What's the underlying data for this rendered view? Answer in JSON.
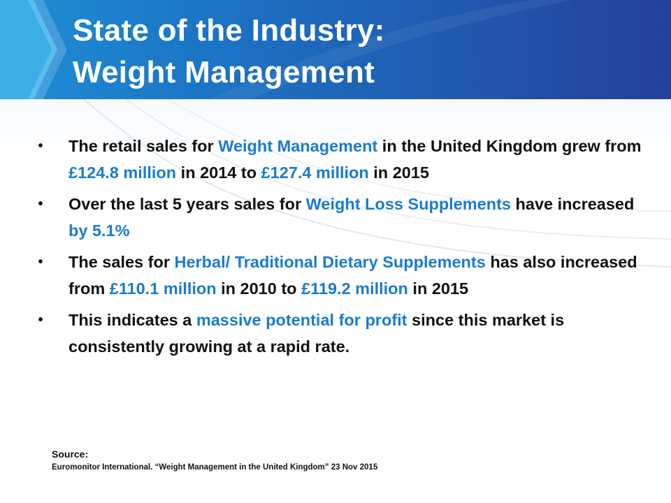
{
  "title": {
    "line1": "State of the Industry:",
    "line2": "Weight Management"
  },
  "bullets": [
    {
      "parts": [
        {
          "t": "The retail sales for "
        },
        {
          "t": "Weight Management",
          "hl": true
        },
        {
          "t": " in the United Kingdom grew from "
        },
        {
          "t": "£124.8 million",
          "hl": true
        },
        {
          "t": " in 2014 to "
        },
        {
          "t": "£127.4 million",
          "hl": true
        },
        {
          "t": " in 2015"
        }
      ]
    },
    {
      "parts": [
        {
          "t": "Over the last 5 years sales for "
        },
        {
          "t": "Weight Loss Supplements",
          "hl": true
        },
        {
          "t": " have increased "
        },
        {
          "t": "by 5.1%",
          "hl": true
        }
      ]
    },
    {
      "parts": [
        {
          "t": "The sales for "
        },
        {
          "t": "Herbal/ Traditional Dietary Supplements",
          "hl": true
        },
        {
          "t": " has also increased from "
        },
        {
          "t": "£110.1 million",
          "hl": true
        },
        {
          "t": " in 2010 to "
        },
        {
          "t": "£119.2 million",
          "hl": true
        },
        {
          "t": " in 2015"
        }
      ]
    },
    {
      "parts": [
        {
          "t": "This indicates a "
        },
        {
          "t": "massive potential for profit",
          "hl": true
        },
        {
          "t": " since this market is consistently growing at a rapid rate."
        }
      ]
    }
  ],
  "source": {
    "label": "Source:",
    "text": "Euromonitor International. “Weight Management in the United Kingdom” 23 Nov 2015"
  },
  "colors": {
    "highlight": "#1a7bd0",
    "header_start": "#1e8fd4",
    "header_end": "#25409a",
    "text": "#111111"
  }
}
